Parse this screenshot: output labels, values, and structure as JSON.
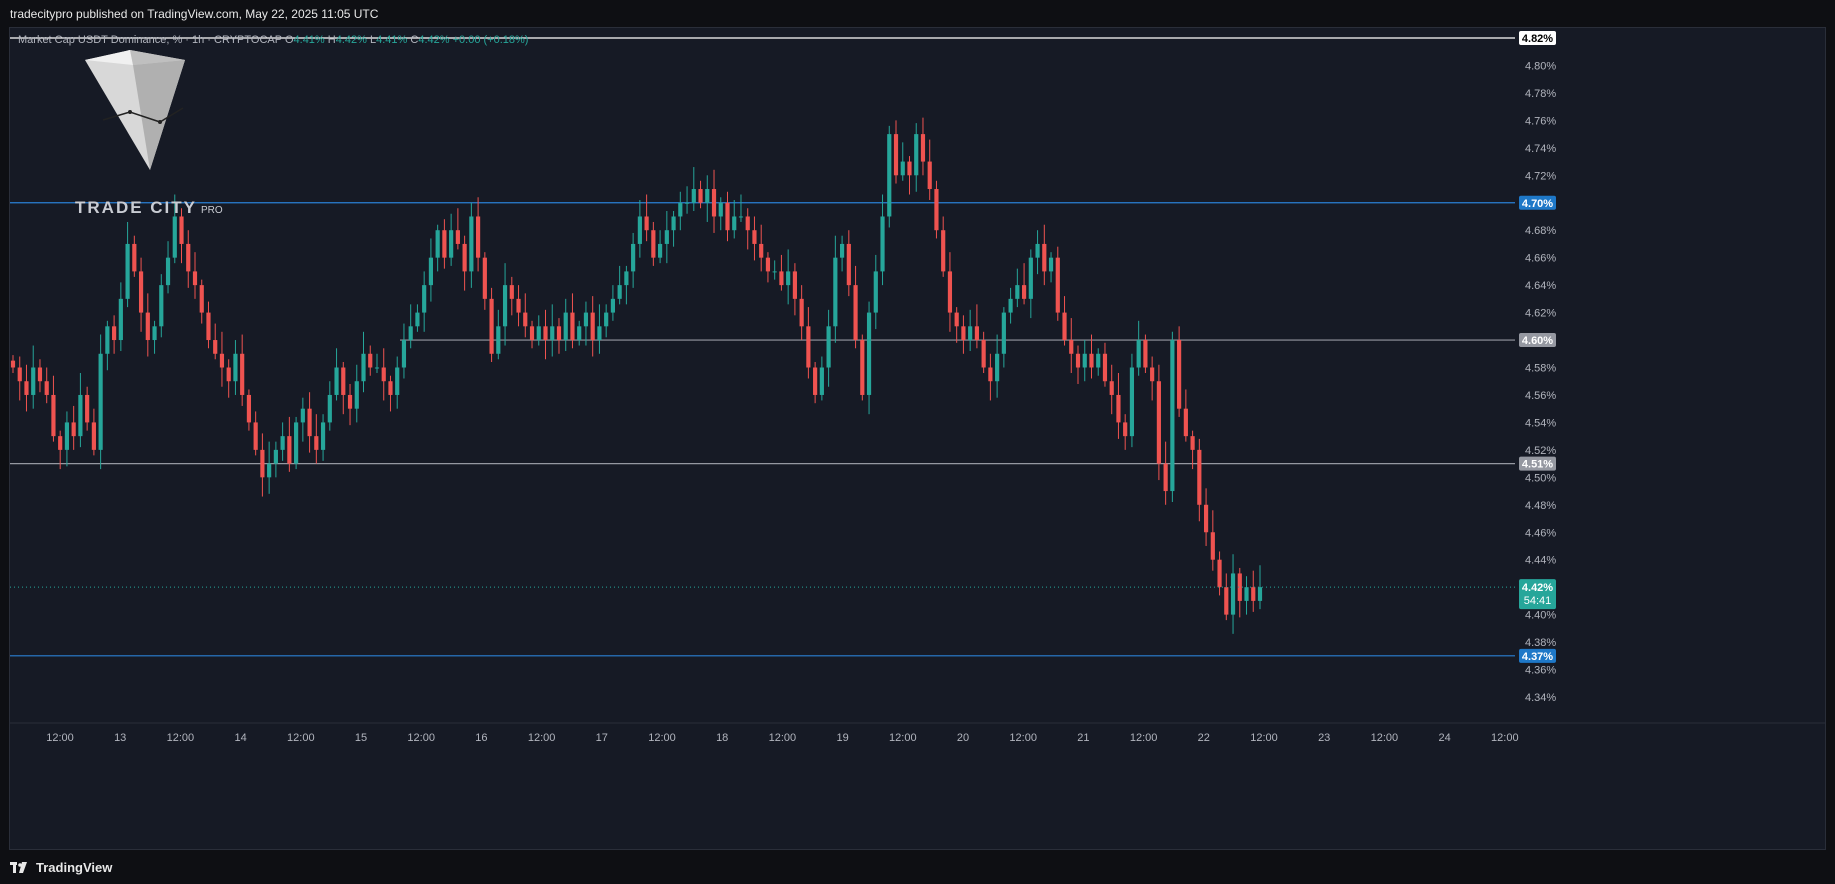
{
  "header": {
    "published_text": "tradecitypro published on TradingView.com, May 22, 2025 11:05 UTC"
  },
  "legend": {
    "symbol_text": "Market Cap USDT Dominance, % · 1h · CRYPTOCAP",
    "o_label": "O",
    "o_value": "4.41%",
    "h_label": "H",
    "h_value": "4.42%",
    "l_label": "L",
    "l_value": "4.41%",
    "c_label": "C",
    "c_value": "4.42%",
    "change": "+0.00 (+0.18%)"
  },
  "watermark": {
    "brand": "TRADE CITY",
    "suffix": "PRO"
  },
  "footer": {
    "brand": "TradingView"
  },
  "colors": {
    "background": "#161a25",
    "up": "#26a69a",
    "down": "#ef5350",
    "blue_level": "#2962ff",
    "blue_label": "#1e78c8",
    "gray_level": "#9598a1",
    "white_level": "#ffffff"
  },
  "chart_data": {
    "type": "candlestick",
    "ylim": [
      4.33,
      4.83
    ],
    "y_ticks": [
      "4.80%",
      "4.78%",
      "4.76%",
      "4.74%",
      "4.72%",
      "4.70%",
      "4.68%",
      "4.66%",
      "4.64%",
      "4.62%",
      "4.60%",
      "4.58%",
      "4.56%",
      "4.54%",
      "4.52%",
      "4.50%",
      "4.48%",
      "4.46%",
      "4.44%",
      "4.42%",
      "4.40%",
      "4.38%",
      "4.36%",
      "4.34%"
    ],
    "x_ticks": [
      "12:00",
      "13",
      "12:00",
      "14",
      "12:00",
      "15",
      "12:00",
      "16",
      "12:00",
      "17",
      "12:00",
      "18",
      "12:00",
      "19",
      "12:00",
      "20",
      "12:00",
      "21",
      "12:00",
      "22",
      "12:00",
      "23",
      "12:00",
      "24",
      "12:00"
    ],
    "levels": [
      {
        "value": 4.82,
        "label": "4.82%",
        "style": "white"
      },
      {
        "value": 4.7,
        "label": "4.70%",
        "style": "blue"
      },
      {
        "value": 4.6,
        "label": "4.60%",
        "style": "gray"
      },
      {
        "value": 4.51,
        "label": "4.51%",
        "style": "gray"
      },
      {
        "value": 4.37,
        "label": "4.37%",
        "style": "blue"
      }
    ],
    "current_price": {
      "value": 4.42,
      "label": "4.42%",
      "countdown": "54:41"
    },
    "closes": [
      4.58,
      4.57,
      4.56,
      4.58,
      4.57,
      4.56,
      4.53,
      4.52,
      4.54,
      4.53,
      4.56,
      4.54,
      4.52,
      4.59,
      4.61,
      4.6,
      4.63,
      4.67,
      4.65,
      4.62,
      4.6,
      4.61,
      4.64,
      4.66,
      4.69,
      4.67,
      4.65,
      4.64,
      4.62,
      4.6,
      4.59,
      4.58,
      4.57,
      4.59,
      4.56,
      4.54,
      4.52,
      4.5,
      4.51,
      4.52,
      4.53,
      4.51,
      4.54,
      4.55,
      4.53,
      4.52,
      4.54,
      4.56,
      4.58,
      4.56,
      4.55,
      4.57,
      4.59,
      4.58,
      4.58,
      4.57,
      4.56,
      4.58,
      4.6,
      4.61,
      4.62,
      4.64,
      4.66,
      4.68,
      4.66,
      4.68,
      4.67,
      4.65,
      4.69,
      4.66,
      4.63,
      4.59,
      4.61,
      4.64,
      4.63,
      4.62,
      4.61,
      4.6,
      4.61,
      4.6,
      4.61,
      4.6,
      4.62,
      4.6,
      4.61,
      4.62,
      4.6,
      4.61,
      4.62,
      4.63,
      4.64,
      4.65,
      4.67,
      4.69,
      4.68,
      4.66,
      4.67,
      4.68,
      4.69,
      4.7,
      4.7,
      4.71,
      4.7,
      4.71,
      4.69,
      4.7,
      4.68,
      4.69,
      4.69,
      4.68,
      4.67,
      4.66,
      4.65,
      4.65,
      4.64,
      4.65,
      4.63,
      4.61,
      4.58,
      4.56,
      4.58,
      4.61,
      4.66,
      4.67,
      4.64,
      4.6,
      4.56,
      4.62,
      4.65,
      4.69,
      4.75,
      4.72,
      4.73,
      4.72,
      4.75,
      4.73,
      4.71,
      4.68,
      4.65,
      4.62,
      4.61,
      4.6,
      4.61,
      4.6,
      4.58,
      4.57,
      4.59,
      4.62,
      4.63,
      4.64,
      4.63,
      4.66,
      4.67,
      4.65,
      4.66,
      4.62,
      4.6,
      4.59,
      4.58,
      4.59,
      4.58,
      4.59,
      4.57,
      4.56,
      4.54,
      4.53,
      4.58,
      4.6,
      4.58,
      4.57,
      4.51,
      4.49,
      4.6,
      4.55,
      4.53,
      4.52,
      4.48,
      4.46,
      4.44,
      4.42,
      4.4,
      4.43,
      4.41,
      4.42,
      4.41,
      4.42
    ],
    "ohlc_note": ""
  }
}
